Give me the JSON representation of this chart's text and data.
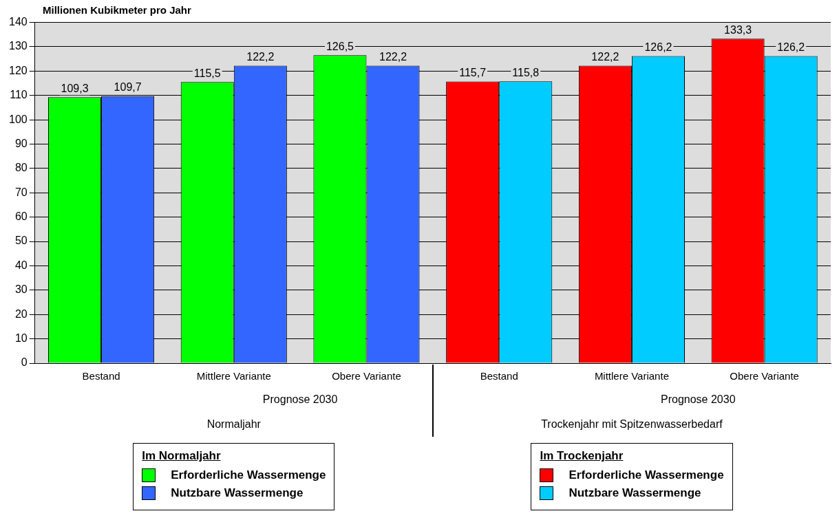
{
  "chart_data": {
    "type": "bar",
    "ylabel": "Millionen Kubikmeter pro Jahr",
    "categories": [
      "Bestand",
      "Mittlere Variante",
      "Obere Variante",
      "Bestand",
      "Mittlere Variante",
      "Obere Variante"
    ],
    "series": [
      {
        "name": "Erforderliche Wassermenge",
        "color": "#00ff00",
        "values": [
          109.3,
          115.5,
          126.5,
          null,
          null,
          null
        ],
        "value_labels": [
          "109,3",
          "115,5",
          "126,5",
          null,
          null,
          null
        ]
      },
      {
        "name": "Nutzbare Wassermenge",
        "color": "#3366ff",
        "values": [
          109.7,
          122.2,
          122.2,
          null,
          null,
          null
        ],
        "value_labels": [
          "109,7",
          "122,2",
          "122,2",
          null,
          null,
          null
        ]
      },
      {
        "name": "Erforderliche Wassermenge",
        "color": "#ff0000",
        "values": [
          null,
          null,
          null,
          115.7,
          122.2,
          133.3
        ],
        "value_labels": [
          null,
          null,
          null,
          "115,7",
          "122,2",
          "133,3"
        ]
      },
      {
        "name": "Nutzbare Wassermenge",
        "color": "#00ccff",
        "values": [
          null,
          null,
          null,
          115.8,
          126.2,
          126.2
        ],
        "value_labels": [
          null,
          null,
          null,
          "115,8",
          "126,2",
          "126,2"
        ]
      }
    ],
    "ylim": [
      0,
      140
    ],
    "yticks": [
      0,
      10,
      20,
      30,
      40,
      50,
      60,
      70,
      80,
      90,
      100,
      110,
      120,
      130,
      140
    ],
    "grid": "y",
    "legend": "bottom",
    "annotations": [
      "Prognose 2030",
      "Prognose 2030",
      "Normaljahr",
      "Trockenjahr mit Spitzenwasserbedarf",
      "Im Normaljahr",
      "Im Trockenjahr"
    ]
  }
}
